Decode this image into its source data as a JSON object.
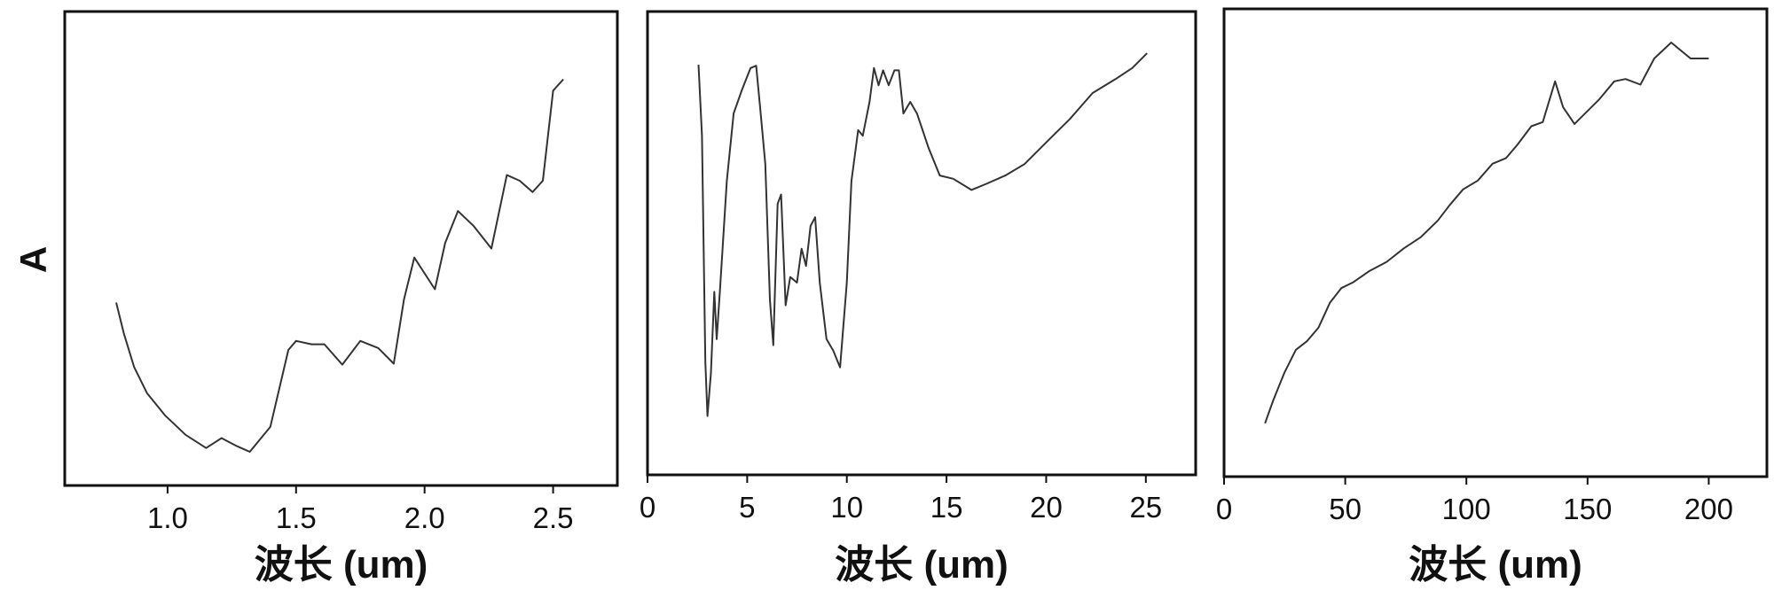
{
  "chart_data": [
    {
      "type": "line",
      "x_label": "波长 (um)",
      "y_label": "A",
      "color": "#333333",
      "xlim": [
        0.6,
        2.75
      ],
      "ylim": [
        0,
        1
      ],
      "xticks": [
        {
          "value": 1.0,
          "label": "1.0"
        },
        {
          "value": 1.5,
          "label": "1.5"
        },
        {
          "value": 2.0,
          "label": "2.0"
        },
        {
          "value": 2.5,
          "label": "2.5"
        }
      ],
      "x": [
        0.8,
        0.83,
        0.87,
        0.92,
        0.99,
        1.07,
        1.15,
        1.21,
        1.27,
        1.32,
        1.4,
        1.47,
        1.5,
        1.56,
        1.61,
        1.68,
        1.75,
        1.82,
        1.88,
        1.92,
        1.96,
        2.04,
        2.08,
        2.13,
        2.19,
        2.26,
        2.32,
        2.37,
        2.42,
        2.46,
        2.5,
        2.54
      ],
      "values": [
        0.386,
        0.321,
        0.25,
        0.195,
        0.148,
        0.107,
        0.079,
        0.1,
        0.083,
        0.071,
        0.124,
        0.286,
        0.305,
        0.298,
        0.298,
        0.255,
        0.305,
        0.29,
        0.257,
        0.393,
        0.481,
        0.414,
        0.512,
        0.579,
        0.548,
        0.5,
        0.655,
        0.643,
        0.619,
        0.643,
        0.833,
        0.857
      ]
    },
    {
      "type": "line",
      "x_label": "波长 (um)",
      "color": "#333333",
      "xlim": [
        0,
        27.5
      ],
      "ylim": [
        0,
        1
      ],
      "xticks": [
        0,
        5,
        10,
        15,
        20,
        25
      ],
      "x": [
        2.56,
        2.73,
        2.9,
        3.01,
        3.18,
        3.35,
        3.47,
        3.64,
        3.98,
        4.32,
        4.72,
        5.17,
        5.45,
        5.68,
        5.91,
        6.14,
        6.31,
        6.53,
        6.7,
        6.93,
        7.16,
        7.5,
        7.73,
        7.95,
        8.18,
        8.41,
        8.64,
        8.98,
        9.32,
        9.66,
        10.0,
        10.23,
        10.57,
        10.8,
        11.14,
        11.36,
        11.59,
        11.82,
        12.1,
        12.39,
        12.61,
        12.84,
        13.18,
        13.52,
        14.09,
        14.66,
        15.34,
        16.25,
        17.05,
        17.95,
        18.92,
        20.06,
        21.19,
        22.33,
        23.47,
        24.32,
        25.06
      ],
      "values": [
        0.885,
        0.732,
        0.244,
        0.127,
        0.22,
        0.395,
        0.293,
        0.402,
        0.634,
        0.78,
        0.829,
        0.878,
        0.883,
        0.78,
        0.671,
        0.378,
        0.28,
        0.585,
        0.605,
        0.366,
        0.427,
        0.415,
        0.488,
        0.451,
        0.537,
        0.556,
        0.415,
        0.293,
        0.268,
        0.232,
        0.415,
        0.634,
        0.744,
        0.732,
        0.805,
        0.878,
        0.841,
        0.873,
        0.841,
        0.873,
        0.873,
        0.78,
        0.805,
        0.78,
        0.707,
        0.646,
        0.639,
        0.615,
        0.629,
        0.646,
        0.671,
        0.72,
        0.768,
        0.824,
        0.854,
        0.878,
        0.91
      ]
    },
    {
      "type": "line",
      "x_label": "波长 (um)",
      "color": "#333333",
      "xlim": [
        0,
        224
      ],
      "ylim": [
        0,
        1
      ],
      "xticks": [
        0,
        50,
        100,
        150,
        200
      ],
      "x": [
        16.9,
        20.2,
        24.9,
        29.6,
        34.3,
        39.0,
        43.7,
        48.4,
        53.1,
        60.1,
        67.1,
        74.2,
        81.2,
        88.3,
        93.0,
        98.6,
        104.7,
        110.8,
        116.4,
        121.1,
        126.8,
        131.5,
        136.6,
        139.9,
        144.6,
        149.3,
        154.9,
        161.0,
        165.7,
        171.8,
        177.5,
        184.5,
        192.5,
        200.0
      ],
      "values": [
        0.114,
        0.162,
        0.222,
        0.271,
        0.29,
        0.319,
        0.372,
        0.403,
        0.415,
        0.44,
        0.459,
        0.488,
        0.512,
        0.548,
        0.58,
        0.614,
        0.633,
        0.669,
        0.681,
        0.71,
        0.749,
        0.758,
        0.845,
        0.79,
        0.754,
        0.778,
        0.807,
        0.845,
        0.85,
        0.838,
        0.894,
        0.928,
        0.894,
        0.894
      ]
    }
  ]
}
